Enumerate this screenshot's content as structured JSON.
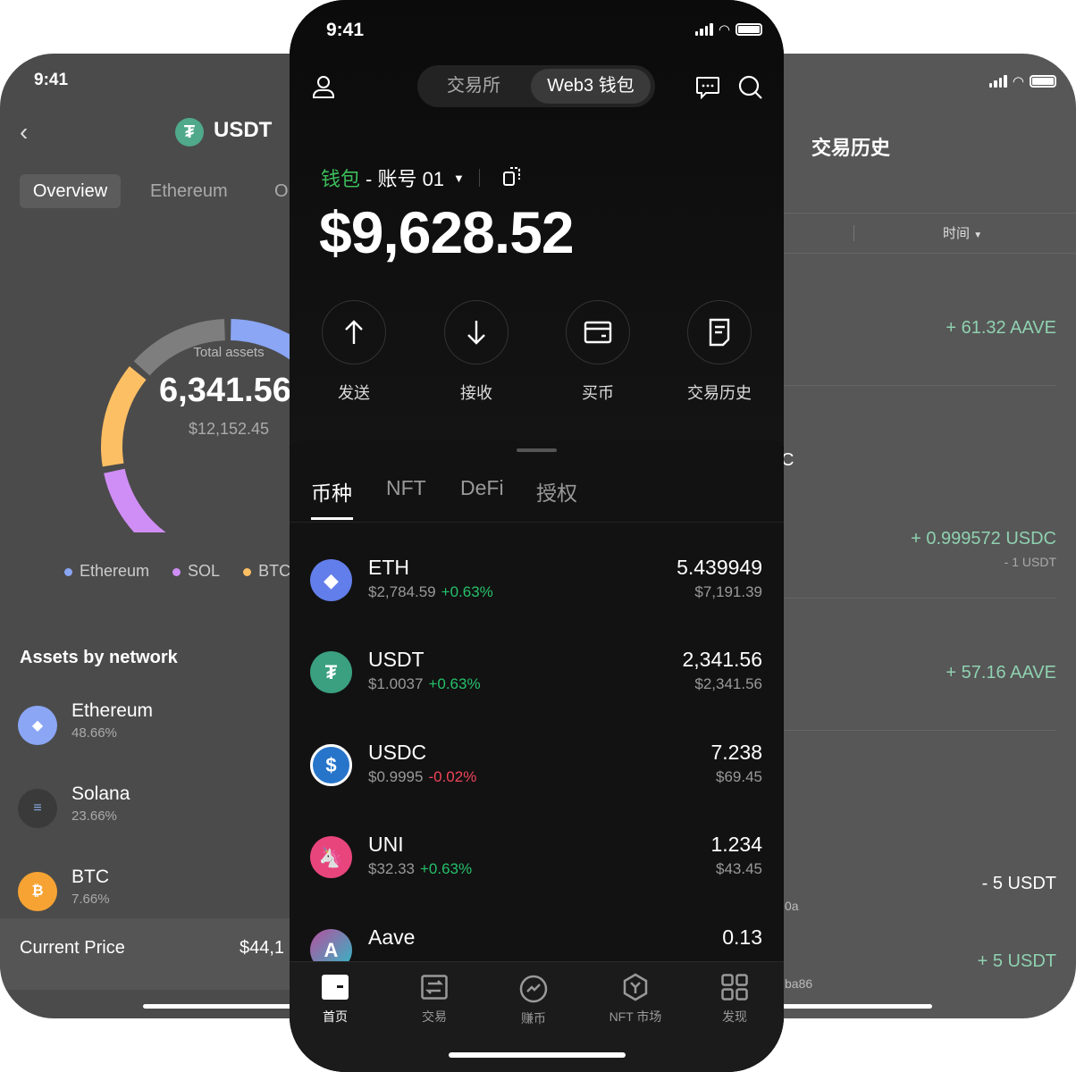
{
  "left_screen": {
    "time": "9:41",
    "title": "USDT",
    "tabs": [
      {
        "label": "Overview",
        "active": true
      },
      {
        "label": "Ethereum"
      },
      {
        "label": "O"
      }
    ],
    "donut": {
      "center_label": "Total assets",
      "amount": "6,341.56",
      "usd": "$12,152.45",
      "segments": [
        {
          "name": "Ethereum",
          "color": "#8aa6f5"
        },
        {
          "name": "SOL",
          "color": "#cf8ef5"
        },
        {
          "name": "BTC",
          "color": "#fdbf63"
        },
        {
          "name": "other",
          "color": "#7e7e7e"
        }
      ]
    },
    "legend": [
      {
        "label": "Ethereum",
        "color": "#8aa6f5"
      },
      {
        "label": "SOL",
        "color": "#cf8ef5"
      },
      {
        "label": "BTC",
        "color": "#fdbf63"
      }
    ],
    "assets_title": "Assets by network",
    "networks": [
      {
        "name": "Ethereum",
        "pct": "48.66%",
        "icon": "ethereum-icon"
      },
      {
        "name": "Solana",
        "pct": "23.66%",
        "icon": "solana-icon"
      },
      {
        "name": "BTC",
        "pct": "7.66%",
        "icon": "bitcoin-icon"
      }
    ],
    "current_price_label": "Current Price",
    "current_price_value": "$44,1"
  },
  "main_screen": {
    "time": "9:41",
    "segments": [
      {
        "label": "交易所"
      },
      {
        "label": "Web3 钱包",
        "active": true
      }
    ],
    "wallet_label": "钱包",
    "account_label": "- 账号 01",
    "balance": "$9,628.52",
    "actions": [
      {
        "label": "发送",
        "icon": "send-arrow-up-icon"
      },
      {
        "label": "接收",
        "icon": "receive-arrow-down-icon"
      },
      {
        "label": "买币",
        "icon": "card-icon"
      },
      {
        "label": "交易历史",
        "icon": "history-document-icon"
      }
    ],
    "tabs": [
      {
        "label": "币种",
        "active": true
      },
      {
        "label": "NFT"
      },
      {
        "label": "DeFi"
      },
      {
        "label": "授权"
      }
    ],
    "tokens": [
      {
        "name": "ETH",
        "price": "$2,784.59",
        "change": "+0.63%",
        "amount": "5.439949",
        "value": "$7,191.39"
      },
      {
        "name": "USDT",
        "price": "$1.0037",
        "change": "+0.63%",
        "amount": "2,341.56",
        "value": "$2,341.56"
      },
      {
        "name": "USDC",
        "price": "$0.9995",
        "change": "-0.02%",
        "amount": "7.238",
        "value": "$69.45"
      },
      {
        "name": "UNI",
        "price": "$32.33",
        "change": "+0.63%",
        "amount": "1.234",
        "value": "$43.45"
      },
      {
        "name": "Aave",
        "amount": "0.13"
      }
    ],
    "nav": [
      {
        "label": "首页",
        "active": true
      },
      {
        "label": "交易"
      },
      {
        "label": "赚币"
      },
      {
        "label": "NFT 市场"
      },
      {
        "label": "发现"
      }
    ],
    "colors": {
      "accent_green": "#3dbd5c",
      "up": "#25c06a",
      "down": "#f0445a"
    }
  },
  "right_screen": {
    "title": "交易历史",
    "filter_time": "时间",
    "transactions": [
      {
        "amount": "+ 61.32 AAVE",
        "type": "in"
      },
      {
        "amount": "+ 0.999572 USDC",
        "sub": "- 1 USDT",
        "type": "in",
        "partial": "C"
      },
      {
        "amount": "+ 57.16 AAVE",
        "type": "in"
      },
      {
        "amount": "- 5 USDT",
        "type": "out",
        "partial": "0a"
      },
      {
        "amount": "+ 5 USDT",
        "type": "in",
        "partial": "ba86"
      }
    ]
  }
}
